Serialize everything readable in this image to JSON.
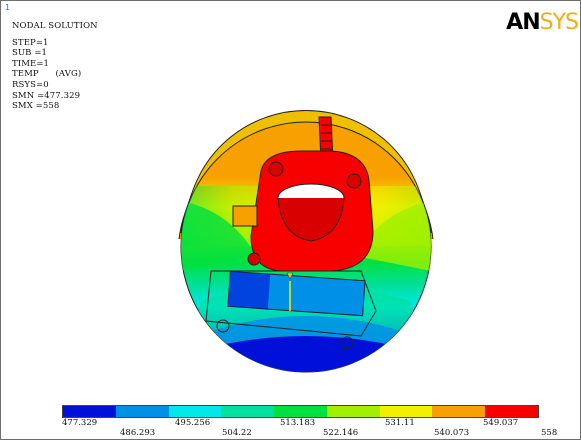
{
  "window_number": "1",
  "header": {
    "title": "NODAL SOLUTION",
    "rows": [
      "STEP=1",
      "SUB =1",
      "TIME=1",
      "TEMP      (AVG)",
      "RSYS=0",
      "SMN =477.329",
      "SMX =558"
    ]
  },
  "logo": {
    "bold": "AN",
    "light": "SYS"
  },
  "colors": {
    "blue": "#0010d8",
    "lightblue": "#0090e8",
    "cyan": "#00e8e8",
    "teal": "#00e0a0",
    "green": "#00e040",
    "lime": "#a0f000",
    "yellow": "#f0f000",
    "orange": "#f8a000",
    "red": "#f80000",
    "outline": "#222222"
  },
  "legend": {
    "colors": [
      "#0010d8",
      "#0090e8",
      "#00e8e8",
      "#00e0a0",
      "#00e040",
      "#a0f000",
      "#f0f000",
      "#f8a000",
      "#f80000"
    ],
    "labels_top": [
      "477.329",
      "495.256",
      "513.183",
      "531.11",
      "549.037"
    ],
    "labels_bottom": [
      "486.293",
      "504.22",
      "522.146",
      "540.073",
      "558"
    ]
  }
}
